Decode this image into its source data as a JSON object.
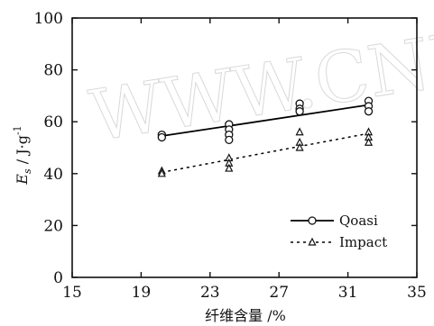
{
  "chart_data": {
    "type": "scatter",
    "title": "",
    "xlabel": "纤维含量 /%",
    "ylabel": "E_s / J·g⁻¹",
    "xlim": [
      15,
      35
    ],
    "ylim": [
      0,
      100
    ],
    "xticks": [
      15,
      19,
      23,
      27,
      31,
      35
    ],
    "yticks": [
      0,
      20,
      40,
      60,
      80,
      100
    ],
    "grid": false,
    "legend_position": "bottom-right",
    "series": [
      {
        "name": "Qoasi",
        "marker": "circle-open",
        "line_style": "solid",
        "color": "#000000",
        "points": [
          {
            "x": 20.2,
            "y": 55
          },
          {
            "x": 20.2,
            "y": 54
          },
          {
            "x": 24.1,
            "y": 59
          },
          {
            "x": 24.1,
            "y": 57
          },
          {
            "x": 24.1,
            "y": 55
          },
          {
            "x": 24.1,
            "y": 53
          },
          {
            "x": 28.2,
            "y": 67
          },
          {
            "x": 28.2,
            "y": 65
          },
          {
            "x": 28.2,
            "y": 64
          },
          {
            "x": 32.2,
            "y": 68
          },
          {
            "x": 32.2,
            "y": 66
          },
          {
            "x": 32.2,
            "y": 64
          }
        ],
        "fit": [
          {
            "x": 20.2,
            "y": 54.5
          },
          {
            "x": 32.2,
            "y": 66.5
          }
        ]
      },
      {
        "name": "Impact",
        "marker": "triangle",
        "line_style": "dotted",
        "color": "#000000",
        "points": [
          {
            "x": 20.2,
            "y": 41
          },
          {
            "x": 20.2,
            "y": 40
          },
          {
            "x": 24.1,
            "y": 46
          },
          {
            "x": 24.1,
            "y": 44
          },
          {
            "x": 24.1,
            "y": 42
          },
          {
            "x": 28.2,
            "y": 56
          },
          {
            "x": 28.2,
            "y": 52
          },
          {
            "x": 28.2,
            "y": 50
          },
          {
            "x": 32.2,
            "y": 56
          },
          {
            "x": 32.2,
            "y": 54
          },
          {
            "x": 32.2,
            "y": 52
          }
        ],
        "fit": [
          {
            "x": 20.2,
            "y": 40.5
          },
          {
            "x": 32.2,
            "y": 55.5
          }
        ]
      }
    ]
  },
  "watermark": "WWW.CNKI"
}
